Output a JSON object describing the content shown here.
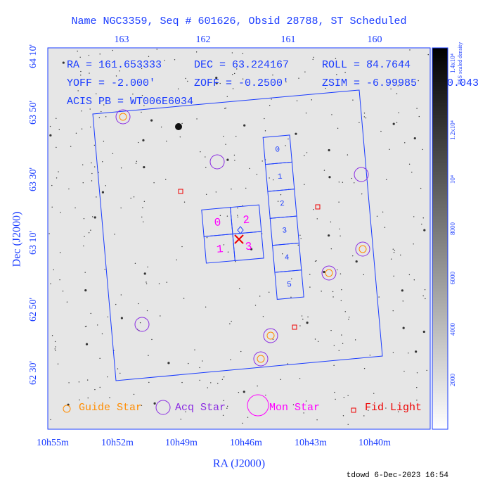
{
  "title": "Name NGC3359, Seq # 601626, Obsid 28788, ST Scheduled",
  "top_ticks": [
    "163",
    "162",
    "161",
    "160"
  ],
  "bottom_ticks": [
    "10h55m",
    "10h52m",
    "10h49m",
    "10h46m",
    "10h43m",
    "10h40m"
  ],
  "left_ticks": [
    "64 10'",
    "63 50'",
    "63 30'",
    "63 10'",
    "62 50'",
    "62 30'"
  ],
  "x_label": "RA (J2000)",
  "y_label": "Dec (J2000)",
  "info": [
    [
      "RA = 161.653333",
      "DEC = 63.224167",
      "ROLL = 84.7644"
    ],
    [
      "YOFF =  -2.000'",
      "ZOFF = -0.2500'",
      "ZSIM = -6.99985"
    ],
    [
      "ACIS PB = WT006E6034"
    ]
  ],
  "extra": "0.043",
  "acis_i": [
    "0",
    "2",
    "1",
    "3"
  ],
  "acis_s": [
    "0",
    "1",
    "2",
    "3",
    "4",
    "5"
  ],
  "legend": [
    "Guide Star",
    "Acq Star",
    "Mon Star",
    "Fid Light"
  ],
  "colorbar": {
    "title": "PSS scaled density",
    "ticks": [
      "1.4x10⁴",
      "1.2x10⁴",
      "10⁴",
      "8000",
      "6000",
      "4000",
      "2000"
    ]
  },
  "footer": "tdowd  6-Dec-2023 16:54"
}
